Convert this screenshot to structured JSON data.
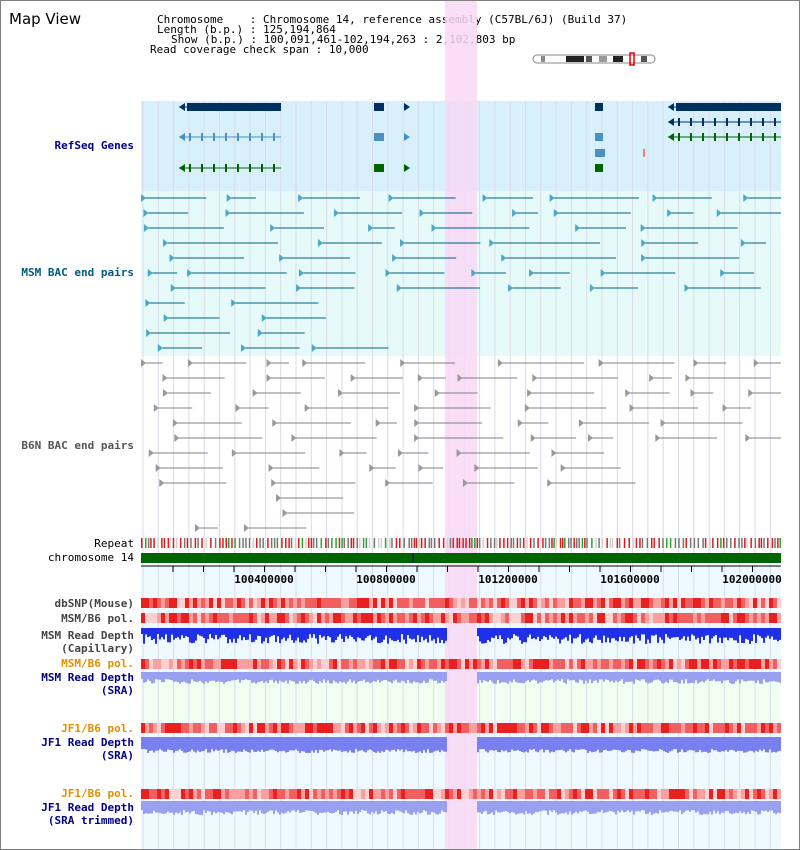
{
  "header": {
    "title": "Map View",
    "chromosome_label": "Chromosome",
    "chromosome_value": "Chromosome 14, reference assembly (C57BL/6J) (Build 37)",
    "length_label": "Length (b.p.)",
    "length_value": "125,194,864",
    "show_label": "Show (b.p.)",
    "show_value": "100,091,461-102,194,263 : 2,102,803 bp",
    "span_label": "Read coverage check span",
    "span_value": "10,000"
  },
  "tracks": {
    "refseq": "RefSeq Genes",
    "msm_bac": "MSM BAC end pairs",
    "b6n_bac": "B6N BAC end pairs",
    "repeat": "Repeat",
    "chromosome": "chromosome 14",
    "dbsnp": "dbSNP(Mouse)",
    "msm_b6_pol_1": "MSM/B6 pol.",
    "msm_read_depth_cap_1": "MSM Read Depth",
    "msm_read_depth_cap_2": "(Capillary)",
    "msm_b6_pol_2": "MSM/B6 pol.",
    "msm_read_depth_sra_1": "MSM Read Depth",
    "msm_read_depth_sra_2": "(SRA)",
    "jf1_b6_pol_1": "JF1/B6 pol.",
    "jf1_read_depth_sra_1": "JF1 Read Depth",
    "jf1_read_depth_sra_2": "(SRA)",
    "jf1_b6_pol_2": "JF1/B6 pol.",
    "jf1_read_depth_trim_1": "JF1 Read Depth",
    "jf1_read_depth_trim_2": "(SRA trimmed)"
  },
  "axis": {
    "ticks": [
      "100400000",
      "100800000",
      "101200000",
      "101600000",
      "102000000"
    ]
  },
  "colors": {
    "refseq_bg": "#d8f0fc",
    "msm_bg": "#e6fafa",
    "highlight": "#f8d8f4",
    "chromosome_bar": "#006400",
    "refseq_dark": "#003060",
    "refseq_light": "#4a90c0",
    "refseq_green": "#006400",
    "msm_line": "#006080",
    "b6n_line": "#808080"
  }
}
